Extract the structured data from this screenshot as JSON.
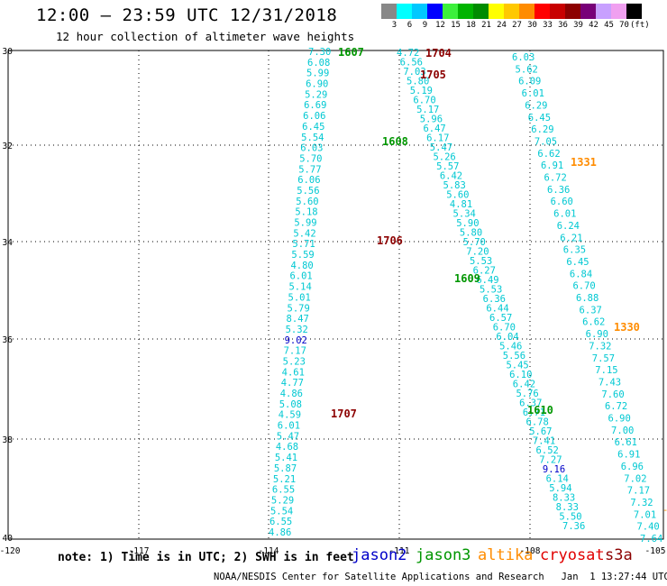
{
  "title": "12:00 – 23:59 UTC 12/31/2018",
  "subtitle": "12 hour collection of altimeter wave heights",
  "colorbar": {
    "labels": [
      "3",
      "6",
      "9",
      "12",
      "15",
      "18",
      "21",
      "24",
      "27",
      "30",
      "33",
      "36",
      "39",
      "42",
      "45",
      "70"
    ],
    "unit": "(ft)",
    "colors": [
      "#888888",
      "#00ffff",
      "#00c8ff",
      "#0000ff",
      "#3cf03c",
      "#00b400",
      "#008c00",
      "#ffff00",
      "#ffc800",
      "#ff8c00",
      "#ff0000",
      "#c80000",
      "#8c0000",
      "#780078",
      "#c8a0ff",
      "#f0a0f0",
      "#000000"
    ]
  },
  "axes": {
    "lon_labels": [
      "-120",
      "-117",
      "-114",
      "-111",
      "-108",
      "-105"
    ],
    "lat_labels": [
      "30",
      "32",
      "34",
      "36",
      "38",
      "40"
    ]
  },
  "note": "note: 1) Time is in UTC; 2) SWH is in feet",
  "legend": [
    {
      "label": "jason2",
      "color": "#0000c8"
    },
    {
      "label": "jason3",
      "color": "#009600"
    },
    {
      "label": "altika",
      "color": "#ff8c00"
    },
    {
      "label": "cryosat",
      "color": "#e10000"
    },
    {
      "label": "s3a",
      "color": "#8c0000"
    }
  ],
  "footer": "NOAA/NESDIS Center for Satellite Applications and Research   Jan  1 13:27:44 UTC 2019",
  "passes": [
    {
      "label": "1607",
      "color": "#009600"
    },
    {
      "label": "1704",
      "color": "#8c0000"
    },
    {
      "label": "1705",
      "color": "#8c0000"
    },
    {
      "label": "1608",
      "color": "#009600"
    },
    {
      "label": "1331",
      "color": "#ff8c00"
    },
    {
      "label": "1706",
      "color": "#8c0000"
    },
    {
      "label": "1609",
      "color": "#009600"
    },
    {
      "label": "1330",
      "color": "#ff8c00"
    },
    {
      "label": "1707",
      "color": "#8c0000"
    },
    {
      "label": "1610",
      "color": "#009600"
    }
  ],
  "tracks": {
    "track_a": [
      "7.30",
      "6.08",
      "5.99",
      "6.90",
      "5.29",
      "6.69",
      "6.06",
      "6.45",
      "5.54",
      "6.03",
      "5.70",
      "5.77",
      "6.06",
      "5.56",
      "5.60",
      "5.18",
      "5.99",
      "5.42",
      "5.71",
      "5.59",
      "4.80",
      "6.01",
      "5.14",
      "5.01",
      "5.79",
      "8.47",
      "5.32",
      "9.02",
      "7.17",
      "5.23",
      "4.61",
      "4.77",
      "4.86",
      "5.08",
      "4.59",
      "6.01",
      "5.47",
      "4.68",
      "5.41",
      "5.87",
      "5.21",
      "6.55",
      "5.29",
      "5.54",
      "6.55",
      "4.86"
    ],
    "track_b": [
      "4.72",
      "6.56",
      "7.03",
      "5.80",
      "5.19",
      "6.70",
      "5.17",
      "5.96",
      "6.47",
      "6.17",
      "5.47",
      "5.26",
      "5.57",
      "6.42",
      "5.83",
      "5.60",
      "4.81",
      "5.34",
      "5.90",
      "5.80",
      "5.70",
      "7.20",
      "5.53",
      "6.27",
      "6.49",
      "5.53",
      "6.36",
      "6.44",
      "6.57",
      "6.70",
      "6.04",
      "5.46",
      "5.56",
      "5.45",
      "6.10",
      "6.42",
      "5.76",
      "6.37",
      "6.71",
      "6.78",
      "5.67",
      "7.41",
      "6.52",
      "7.27",
      "9.16",
      "6.14",
      "5.94",
      "8.33",
      "8.33",
      "5.50",
      "7.36"
    ],
    "track_c": [
      "6.03",
      "5.62",
      "6.09",
      "6.01",
      "6.29",
      "6.45",
      "6.29",
      "7.05",
      "6.62",
      "6.91",
      "6.72",
      "6.36",
      "6.60",
      "6.01",
      "6.24",
      "6.21",
      "6.35",
      "6.45",
      "6.84",
      "6.70",
      "6.88",
      "6.37",
      "6.62",
      "6.90",
      "7.32",
      "7.57",
      "7.15",
      "7.43",
      "7.60",
      "6.72",
      "6.90",
      "7.00",
      "6.61",
      "6.91",
      "6.96",
      "7.02",
      "7.17",
      "7.32",
      "7.01",
      "7.40",
      "7.64"
    ]
  },
  "highlight_values": [
    "9.02",
    "9.16"
  ]
}
